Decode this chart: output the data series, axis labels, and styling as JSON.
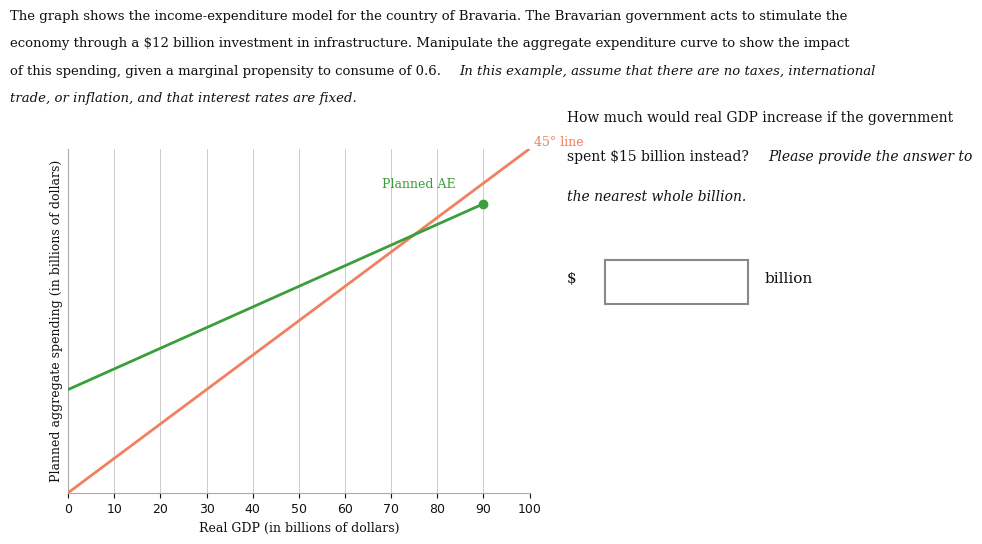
{
  "header_line1": "The graph shows the income-expenditure model for the country of Bravaria. The Bravarian government acts to stimulate the",
  "header_line2": "economy through a $12 billion investment in infrastructure. Manipulate the aggregate expenditure curve to show the impact",
  "header_line3_normal": "of this spending, given a marginal propensity to consume of 0.6. ",
  "header_line3_italic": "In this example, assume that there are no taxes, international",
  "header_line4_italic": "trade, or inflation, and that interest rates are fixed.",
  "xlabel": "Real GDP (in billions of dollars)",
  "ylabel": "Planned aggregate spending (in billions of dollars)",
  "xlim": [
    0,
    100
  ],
  "ylim": [
    0,
    100
  ],
  "xticks": [
    0,
    10,
    20,
    30,
    40,
    50,
    60,
    70,
    80,
    90,
    100
  ],
  "line45_color": "#F08060",
  "line45_label": "45° line",
  "planned_ae_color": "#3A9E3A",
  "planned_ae_label": "Planned AE",
  "planned_ae_x_start": 0,
  "planned_ae_y_start": 30,
  "planned_ae_x_end": 90,
  "planned_ae_y_end": 84,
  "planned_ae_dot_x": 90,
  "planned_ae_dot_y": 84,
  "right_q_normal": "How much would real GDP increase if the government\nspent $15 billion instead? ",
  "right_q_italic": "Please provide the answer to\nthe nearest whole billion.",
  "dollar_label": "$",
  "billion_label": "billion",
  "grid_color": "#cccccc",
  "background_color": "#ffffff",
  "font_size_header": 9.5,
  "font_size_axis_label": 9,
  "font_size_tick": 9,
  "font_size_line_label": 9,
  "font_size_right_text": 10
}
